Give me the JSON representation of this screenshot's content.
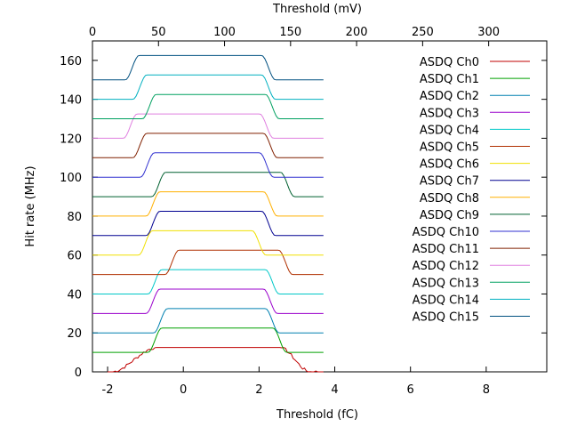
{
  "chart_data": {
    "type": "line",
    "title": "",
    "xlabel": "Threshold (fC)",
    "x2label": "Threshold (mV)",
    "ylabel": "Hit rate (MHz)",
    "xlim": [
      -2.4,
      9.6
    ],
    "x2lim": [
      0,
      344
    ],
    "ylim": [
      0,
      170
    ],
    "x_ticks": [
      -2,
      0,
      2,
      4,
      6,
      8
    ],
    "x_tick_labels": [
      "-2",
      "0",
      "2",
      "4",
      "6",
      "8"
    ],
    "x2_ticks": [
      0,
      50,
      100,
      150,
      200,
      250,
      300
    ],
    "x2_tick_labels": [
      "0",
      "50",
      "100",
      "150",
      "200",
      "250",
      "300"
    ],
    "y_ticks": [
      0,
      20,
      40,
      60,
      80,
      100,
      120,
      140,
      160
    ],
    "y_tick_labels": [
      "0",
      "20",
      "40",
      "60",
      "80",
      "100",
      "120",
      "140",
      "160"
    ],
    "grid": false,
    "legend_position": "top-right",
    "series": [
      {
        "name": "ASDQ Ch0",
        "color": "#c00000",
        "baseline": 0,
        "plateau": 12.5,
        "rise": -0.85,
        "fall": 2.75,
        "noisy": true
      },
      {
        "name": "ASDQ Ch1",
        "color": "#00a000",
        "baseline": 10,
        "plateau": 22.5,
        "rise": -0.75,
        "fall": 2.55
      },
      {
        "name": "ASDQ Ch2",
        "color": "#0080b0",
        "baseline": 20,
        "plateau": 32.5,
        "rise": -0.6,
        "fall": 2.35
      },
      {
        "name": "ASDQ Ch3",
        "color": "#9900cc",
        "baseline": 30,
        "plateau": 42.5,
        "rise": -0.8,
        "fall": 2.3
      },
      {
        "name": "ASDQ Ch4",
        "color": "#00c8c8",
        "baseline": 40,
        "plateau": 52.5,
        "rise": -0.75,
        "fall": 2.35
      },
      {
        "name": "ASDQ Ch5",
        "color": "#b03000",
        "baseline": 50,
        "plateau": 62.5,
        "rise": -0.3,
        "fall": 2.7
      },
      {
        "name": "ASDQ Ch6",
        "color": "#f0e000",
        "baseline": 60,
        "plateau": 72.5,
        "rise": -1.0,
        "fall": 2.0
      },
      {
        "name": "ASDQ Ch7",
        "color": "#000090",
        "baseline": 70,
        "plateau": 82.5,
        "rise": -0.8,
        "fall": 2.25
      },
      {
        "name": "ASDQ Ch8",
        "color": "#ffb000",
        "baseline": 80,
        "plateau": 92.5,
        "rise": -0.8,
        "fall": 2.3
      },
      {
        "name": "ASDQ Ch9",
        "color": "#006030",
        "baseline": 90,
        "plateau": 102.5,
        "rise": -0.65,
        "fall": 2.75
      },
      {
        "name": "ASDQ Ch10",
        "color": "#3030d0",
        "baseline": 100,
        "plateau": 112.5,
        "rise": -0.95,
        "fall": 2.2
      },
      {
        "name": "ASDQ Ch11",
        "color": "#802000",
        "baseline": 110,
        "plateau": 122.5,
        "rise": -1.15,
        "fall": 2.3
      },
      {
        "name": "ASDQ Ch12",
        "color": "#e080e0",
        "baseline": 120,
        "plateau": 132.5,
        "rise": -1.4,
        "fall": 2.2
      },
      {
        "name": "ASDQ Ch13",
        "color": "#00a060",
        "baseline": 130,
        "plateau": 142.5,
        "rise": -0.9,
        "fall": 2.35
      },
      {
        "name": "ASDQ Ch14",
        "color": "#00b0c0",
        "baseline": 140,
        "plateau": 152.5,
        "rise": -1.15,
        "fall": 2.25
      },
      {
        "name": "ASDQ Ch15",
        "color": "#005080",
        "baseline": 150,
        "plateau": 162.5,
        "rise": -1.35,
        "fall": 2.25
      }
    ]
  }
}
